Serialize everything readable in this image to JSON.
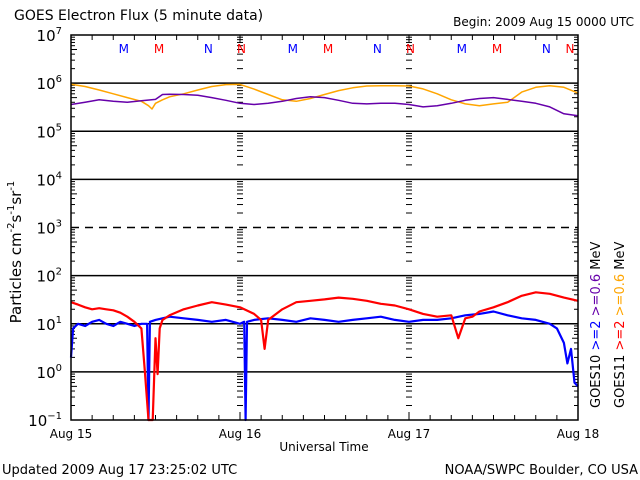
{
  "chart_data": {
    "type": "line",
    "title": "GOES Electron Flux (5 minute data)",
    "begin_label": "Begin: 2009 Aug 15 0000 UTC",
    "xlabel": "Universal Time",
    "ylabel": "Particles cm⁻²s⁻¹sr⁻¹",
    "ylabel_parts": {
      "base": "Particles cm",
      "exp1": "-2",
      "s": "s",
      "exp2": "-1",
      "sr": "sr",
      "exp3": "-1"
    },
    "yscale": "log",
    "ylim_exp": [
      -1,
      7
    ],
    "ytick_exponents": [
      7,
      6,
      5,
      4,
      3,
      2,
      1,
      0,
      -1
    ],
    "xlim_hours": [
      0,
      72
    ],
    "xticks": [
      {
        "hour": 0,
        "label": "Aug 15"
      },
      {
        "hour": 24,
        "label": "Aug 16"
      },
      {
        "hour": 48,
        "label": "Aug 17"
      },
      {
        "hour": 72,
        "label": "Aug 18"
      }
    ],
    "grid_solid_exponents": [
      6,
      5,
      4,
      2,
      1,
      0
    ],
    "grid_dashed_exponents": [
      3
    ],
    "local_time_markers": [
      {
        "hour": 7.5,
        "label": "M",
        "color": "#0000ff"
      },
      {
        "hour": 12.5,
        "label": "M",
        "color": "#ff0000"
      },
      {
        "hour": 19.5,
        "label": "N",
        "color": "#0000ff"
      },
      {
        "hour": 24.5,
        "label": "N",
        "color": "#ff0000",
        "offset": -2
      },
      {
        "hour": 31.5,
        "label": "M",
        "color": "#0000ff"
      },
      {
        "hour": 36.5,
        "label": "M",
        "color": "#ff0000"
      },
      {
        "hour": 43.5,
        "label": "N",
        "color": "#0000ff"
      },
      {
        "hour": 48.5,
        "label": "N",
        "color": "#ff0000",
        "offset": -2
      },
      {
        "hour": 55.5,
        "label": "M",
        "color": "#0000ff"
      },
      {
        "hour": 60.5,
        "label": "M",
        "color": "#ff0000"
      },
      {
        "hour": 67.5,
        "label": "N",
        "color": "#0000ff"
      },
      {
        "hour": 72.5,
        "label": "N",
        "color": "#ff0000",
        "offset": -2
      }
    ],
    "legend": [
      {
        "text": "GOES10",
        "color": "#000000"
      },
      {
        "text": ">=2",
        "color": "#0000ff"
      },
      {
        "text": ">=0.6",
        "color": "#6600aa"
      },
      {
        "text": "MeV",
        "color": "#000000"
      },
      {
        "text": "GOES11",
        "color": "#000000"
      },
      {
        "text": ">=2",
        "color": "#ff0000"
      },
      {
        "text": ">=0.6",
        "color": "#ffa500"
      },
      {
        "text": "MeV",
        "color": "#000000"
      }
    ],
    "legend_placement": "right-vertical",
    "series": [
      {
        "name": "GOES11 >=0.6 MeV",
        "color": "#ffa500",
        "x_hours": [
          0,
          2,
          4,
          6,
          8,
          10,
          11,
          11.5,
          12,
          13,
          14,
          16,
          18,
          20,
          22,
          24,
          26,
          28,
          30,
          32,
          34,
          36,
          38,
          40,
          42,
          44,
          46,
          48,
          50,
          52,
          54,
          56,
          58,
          60,
          62,
          64,
          66,
          68,
          70,
          72
        ],
        "y": [
          950000.0,
          850000.0,
          720000.0,
          600000.0,
          500000.0,
          420000.0,
          340000.0,
          290000.0,
          380000.0,
          450000.0,
          520000.0,
          600000.0,
          720000.0,
          850000.0,
          930000.0,
          940000.0,
          750000.0,
          580000.0,
          450000.0,
          420000.0,
          480000.0,
          580000.0,
          700000.0,
          800000.0,
          870000.0,
          880000.0,
          880000.0,
          870000.0,
          760000.0,
          600000.0,
          450000.0,
          370000.0,
          340000.0,
          370000.0,
          400000.0,
          650000.0,
          820000.0,
          880000.0,
          820000.0,
          620000.0
        ]
      },
      {
        "name": "GOES10 >=0.6 MeV",
        "color": "#6600aa",
        "x_hours": [
          0,
          2,
          4,
          6,
          8,
          10,
          12,
          13,
          14,
          16,
          18,
          20,
          22,
          24,
          26,
          28,
          30,
          32,
          34,
          36,
          38,
          40,
          42,
          44,
          46,
          48,
          50,
          52,
          54,
          56,
          58,
          60,
          62,
          64,
          66,
          68,
          70,
          72
        ],
        "y": [
          360000.0,
          400000.0,
          450000.0,
          420000.0,
          400000.0,
          430000.0,
          460000.0,
          580000.0,
          590000.0,
          580000.0,
          560000.0,
          500000.0,
          440000.0,
          380000.0,
          360000.0,
          380000.0,
          420000.0,
          480000.0,
          520000.0,
          500000.0,
          440000.0,
          380000.0,
          370000.0,
          380000.0,
          380000.0,
          360000.0,
          320000.0,
          340000.0,
          380000.0,
          440000.0,
          480000.0,
          500000.0,
          460000.0,
          420000.0,
          380000.0,
          320000.0,
          230000.0,
          210000.0
        ]
      },
      {
        "name": "GOES10 >=2 MeV",
        "color": "#0000ff",
        "x_hours": [
          0,
          0.3,
          1,
          2,
          3,
          4,
          5,
          6,
          7,
          8,
          9,
          10,
          10.8,
          11,
          11.2,
          12,
          13,
          14,
          16,
          18,
          20,
          22,
          24,
          24.6,
          24.8,
          25,
          26,
          28,
          30,
          32,
          34,
          36,
          38,
          40,
          42,
          44,
          46,
          48,
          50,
          52,
          54,
          56,
          58,
          60,
          62,
          64,
          66,
          68,
          69,
          70,
          70.5,
          71,
          71.5,
          72
        ],
        "y": [
          2,
          8,
          10,
          9,
          11,
          12,
          10,
          9,
          11,
          10,
          9,
          10,
          10,
          0.1,
          11,
          12,
          13,
          14,
          13,
          12,
          11,
          12,
          10,
          11,
          0.1,
          11,
          12,
          13,
          12,
          11,
          13,
          12,
          11,
          12,
          13,
          14,
          12,
          11,
          12,
          12,
          13,
          15,
          16,
          18,
          15,
          13,
          12,
          10,
          8,
          4,
          1.5,
          3,
          0.6,
          0.5
        ]
      },
      {
        "name": "GOES11 >=2 MeV",
        "color": "#ff0000",
        "x_hours": [
          0,
          1,
          2,
          3,
          4,
          5,
          6,
          7,
          8,
          9,
          10,
          10.5,
          11,
          11.3,
          11.6,
          12,
          12.3,
          12.6,
          13,
          14,
          16,
          18,
          20,
          22,
          24,
          26,
          27,
          27.5,
          28,
          30,
          32,
          34,
          36,
          38,
          40,
          42,
          44,
          46,
          48,
          50,
          52,
          54,
          55,
          56,
          57,
          58,
          60,
          62,
          64,
          66,
          68,
          70,
          72
        ],
        "y": [
          28,
          25,
          22,
          20,
          21,
          20,
          19,
          17,
          14,
          11,
          8,
          1,
          0.1,
          0.1,
          0.1,
          5,
          0.9,
          8,
          12,
          15,
          20,
          24,
          28,
          25,
          22,
          16,
          12,
          3,
          12,
          20,
          28,
          30,
          32,
          35,
          33,
          30,
          26,
          24,
          20,
          16,
          14,
          15,
          5,
          13,
          14,
          18,
          22,
          28,
          38,
          45,
          42,
          35,
          30
        ]
      }
    ]
  },
  "footer": {
    "updated": "Updated 2009 Aug 17 23:25:02 UTC",
    "source": "NOAA/SWPC Boulder, CO USA"
  }
}
